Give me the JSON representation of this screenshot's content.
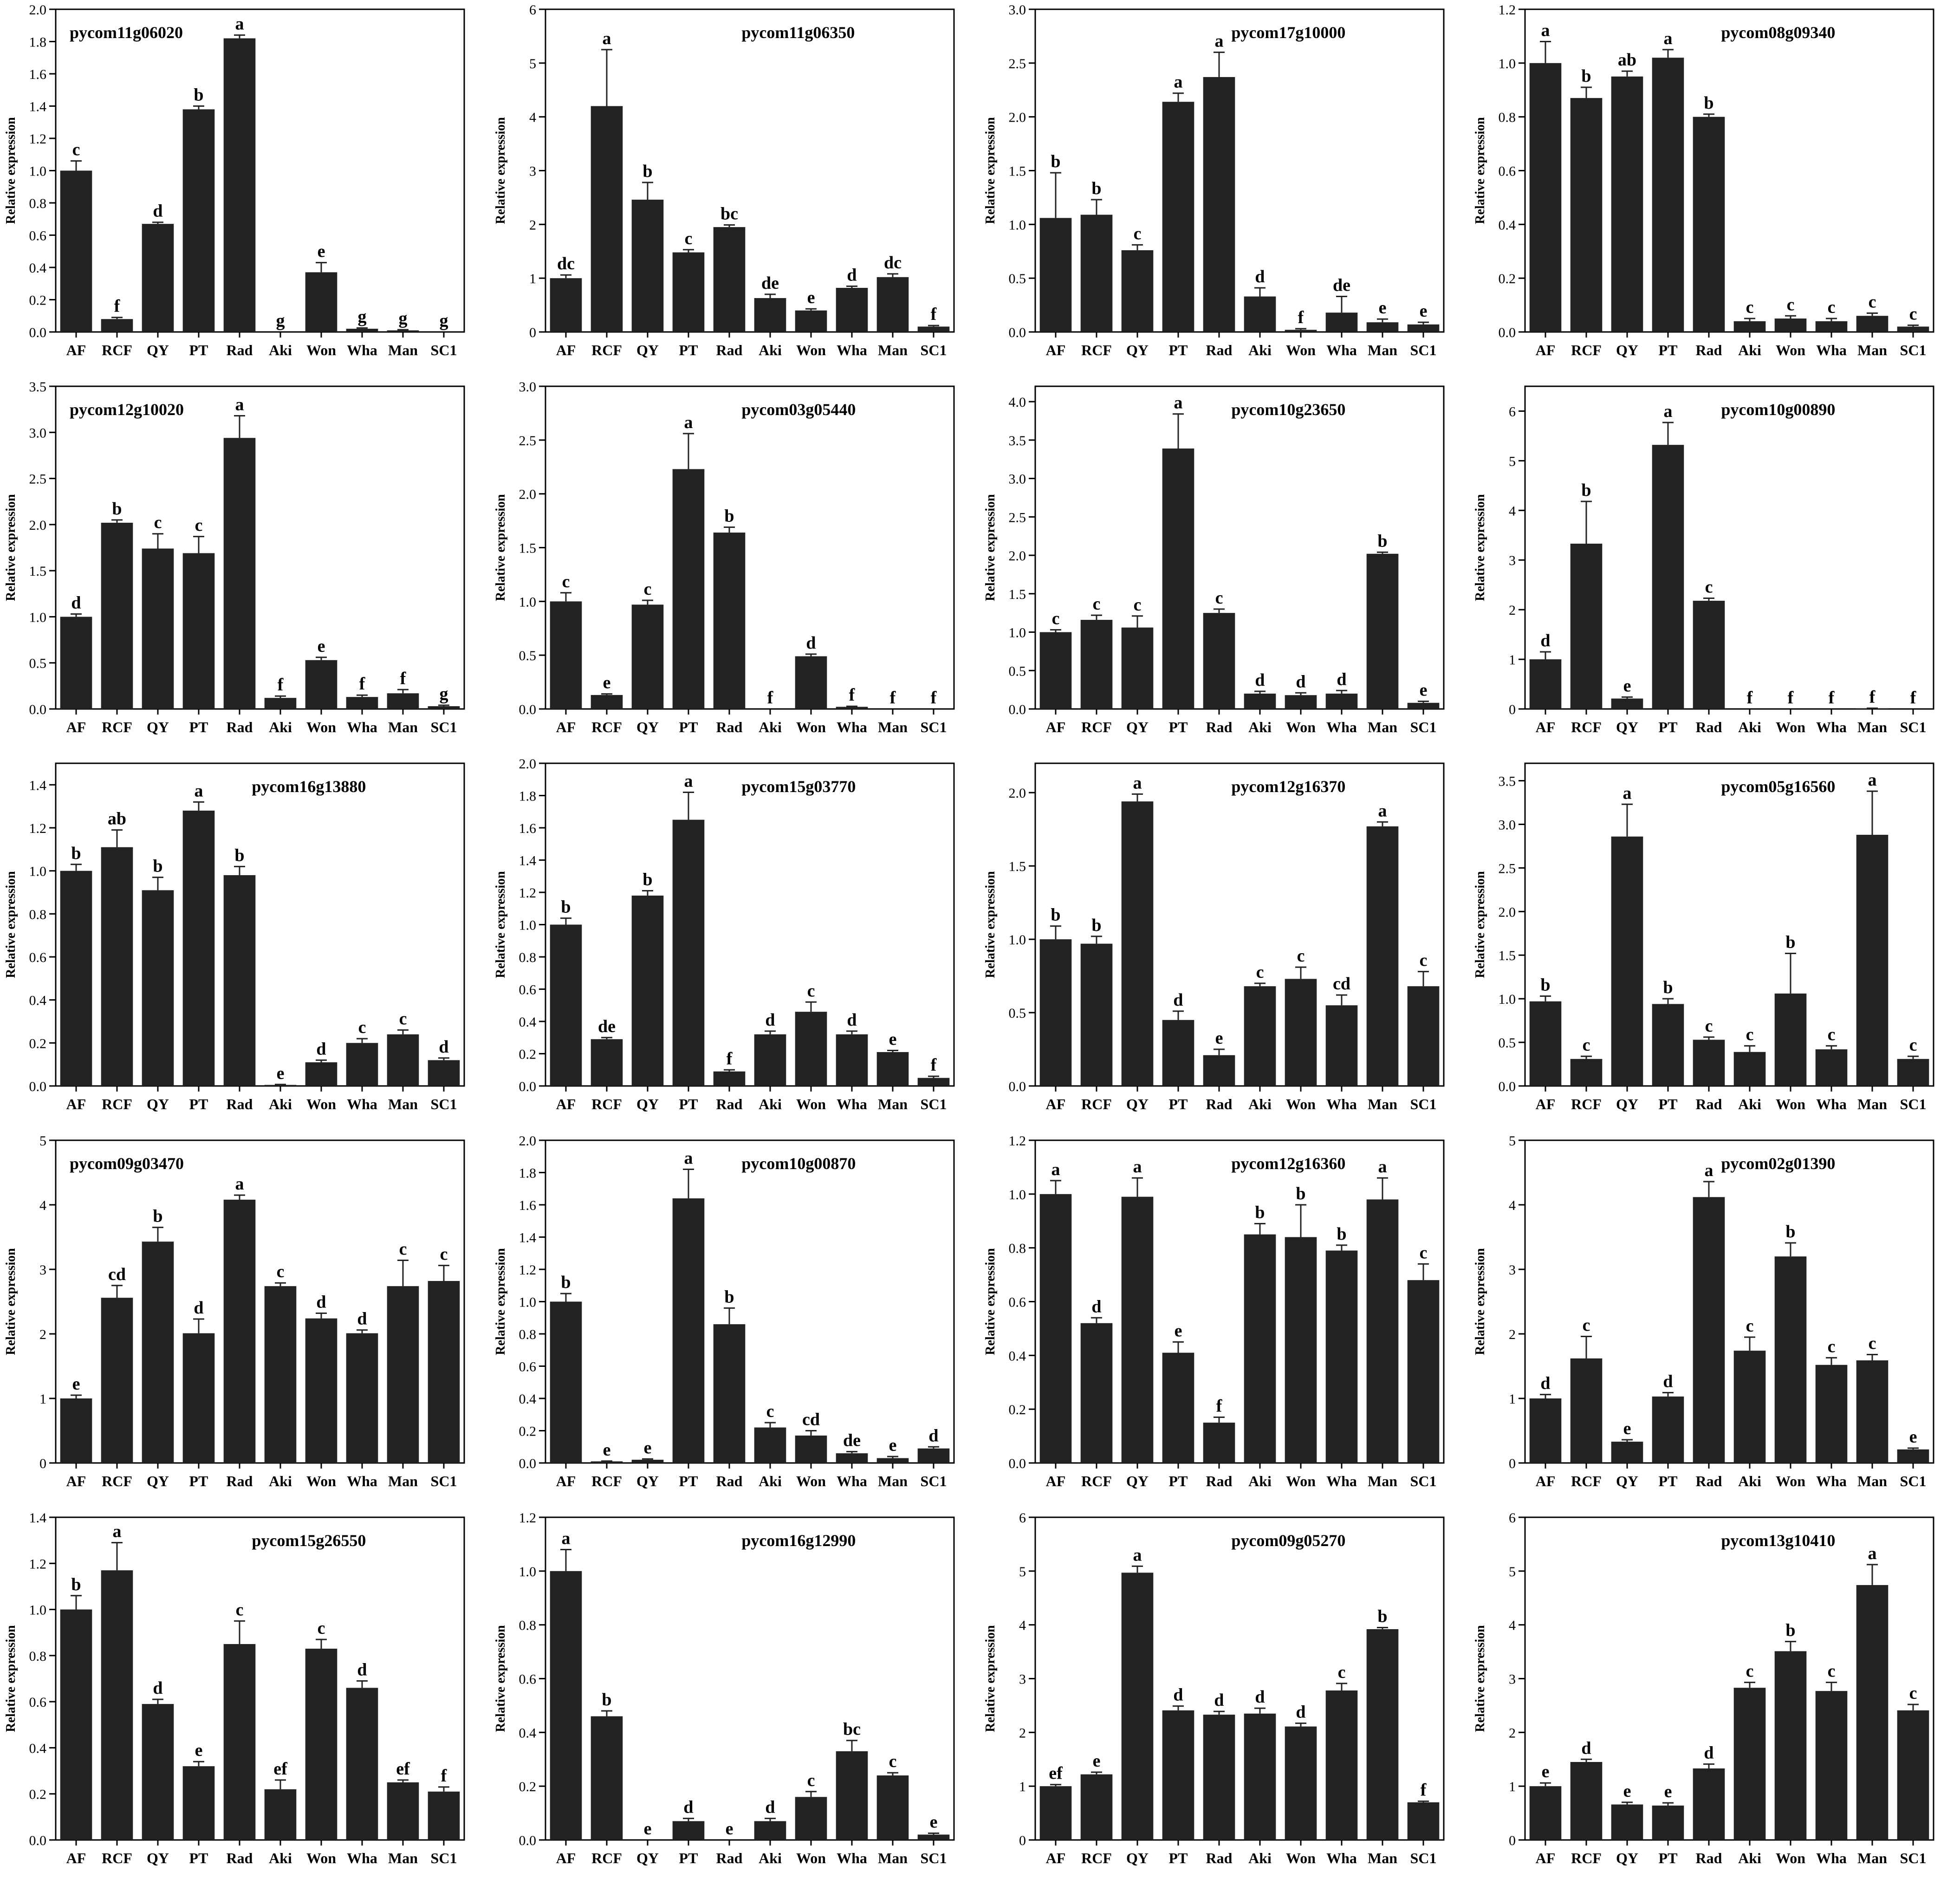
{
  "figure": {
    "bar_color": "#222222",
    "axis_color": "#000000",
    "background": "#ffffff"
  },
  "chart_data": [
    {
      "type": "bar",
      "title": "pycom11g06020",
      "ylabel": "Relative expression",
      "ylim": [
        0,
        2.0
      ],
      "yticks": [
        0,
        0.2,
        0.4,
        0.6,
        0.8,
        1.0,
        1.2,
        1.4,
        1.6,
        1.8,
        2.0
      ],
      "categories": [
        "AF",
        "RCF",
        "QY",
        "PT",
        "Rad",
        "Aki",
        "Won",
        "Wha",
        "Man",
        "SC1"
      ],
      "values": [
        1.0,
        0.08,
        0.67,
        1.38,
        1.82,
        0.0,
        0.37,
        0.02,
        0.01,
        0.0
      ],
      "errors": [
        0.06,
        0.01,
        0.01,
        0.02,
        0.02,
        0.0,
        0.06,
        0.005,
        0.004,
        0.0
      ],
      "letters": [
        "c",
        "f",
        "d",
        "b",
        "a",
        "g",
        "e",
        "g",
        "g",
        "g"
      ]
    },
    {
      "type": "bar",
      "title": "pycom11g06350",
      "ylabel": "Relative expression",
      "ylim": [
        0,
        6
      ],
      "yticks": [
        0,
        1,
        2,
        3,
        4,
        5,
        6
      ],
      "categories": [
        "AF",
        "RCF",
        "QY",
        "PT",
        "Rad",
        "Aki",
        "Won",
        "Wha",
        "Man",
        "SC1"
      ],
      "values": [
        1.0,
        4.2,
        2.46,
        1.48,
        1.95,
        0.63,
        0.4,
        0.82,
        1.02,
        0.1
      ],
      "errors": [
        0.06,
        1.05,
        0.32,
        0.05,
        0.04,
        0.07,
        0.03,
        0.03,
        0.06,
        0.02
      ],
      "letters": [
        "dc",
        "a",
        "b",
        "c",
        "bc",
        "de",
        "e",
        "d",
        "dc",
        "f"
      ]
    },
    {
      "type": "bar",
      "title": "pycom17g10000",
      "ylabel": "Relative expression",
      "ylim": [
        0,
        3.0
      ],
      "yticks": [
        0,
        0.5,
        1.0,
        1.5,
        2.0,
        2.5,
        3.0
      ],
      "categories": [
        "AF",
        "RCF",
        "QY",
        "PT",
        "Rad",
        "Aki",
        "Won",
        "Wha",
        "Man",
        "SC1"
      ],
      "values": [
        1.06,
        1.09,
        0.76,
        2.14,
        2.37,
        0.33,
        0.02,
        0.18,
        0.09,
        0.07
      ],
      "errors": [
        0.42,
        0.14,
        0.05,
        0.08,
        0.23,
        0.08,
        0.01,
        0.15,
        0.03,
        0.02
      ],
      "letters": [
        "b",
        "b",
        "c",
        "a",
        "a",
        "d",
        "f",
        "de",
        "e",
        "e"
      ]
    },
    {
      "type": "bar",
      "title": "pycom08g09340",
      "ylabel": "Relative expression",
      "ylim": [
        0,
        1.2
      ],
      "yticks": [
        0,
        0.2,
        0.4,
        0.6,
        0.8,
        1.0,
        1.2
      ],
      "categories": [
        "AF",
        "RCF",
        "QY",
        "PT",
        "Rad",
        "Aki",
        "Won",
        "Wha",
        "Man",
        "SC1"
      ],
      "values": [
        1.0,
        0.87,
        0.95,
        1.02,
        0.8,
        0.04,
        0.05,
        0.04,
        0.06,
        0.02
      ],
      "errors": [
        0.08,
        0.04,
        0.02,
        0.03,
        0.01,
        0.01,
        0.01,
        0.01,
        0.01,
        0.005
      ],
      "letters": [
        "a",
        "b",
        "ab",
        "a",
        "b",
        "c",
        "c",
        "c",
        "c",
        "c"
      ]
    },
    {
      "type": "bar",
      "title": "pycom12g10020",
      "ylabel": "Relative expression",
      "ylim": [
        0,
        3.5
      ],
      "yticks": [
        0,
        0.5,
        1.0,
        1.5,
        2.0,
        2.5,
        3.0,
        3.5
      ],
      "categories": [
        "AF",
        "RCF",
        "QY",
        "PT",
        "Rad",
        "Aki",
        "Won",
        "Wha",
        "Man",
        "SC1"
      ],
      "values": [
        1.0,
        2.02,
        1.74,
        1.69,
        2.94,
        0.12,
        0.53,
        0.13,
        0.17,
        0.03
      ],
      "errors": [
        0.03,
        0.03,
        0.16,
        0.18,
        0.24,
        0.02,
        0.03,
        0.02,
        0.04,
        0.01
      ],
      "letters": [
        "d",
        "b",
        "c",
        "c",
        "a",
        "f",
        "e",
        "f",
        "f",
        "g"
      ]
    },
    {
      "type": "bar",
      "title": "pycom03g05440",
      "ylabel": "Relative expression",
      "ylim": [
        0,
        3.0
      ],
      "yticks": [
        0,
        0.5,
        1.0,
        1.5,
        2.0,
        2.5,
        3.0
      ],
      "categories": [
        "AF",
        "RCF",
        "QY",
        "PT",
        "Rad",
        "Aki",
        "Won",
        "Wha",
        "Man",
        "SC1"
      ],
      "values": [
        1.0,
        0.13,
        0.97,
        2.23,
        1.64,
        0.0,
        0.49,
        0.02,
        0.0,
        0.0
      ],
      "errors": [
        0.08,
        0.01,
        0.04,
        0.33,
        0.05,
        0.0,
        0.02,
        0.005,
        0.0,
        0.0
      ],
      "letters": [
        "c",
        "e",
        "c",
        "a",
        "b",
        "f",
        "d",
        "f",
        "f",
        "f"
      ]
    },
    {
      "type": "bar",
      "title": "pycom10g23650",
      "ylabel": "Relative expression",
      "ylim": [
        0,
        4.2
      ],
      "yticks": [
        0,
        0.5,
        1.0,
        1.5,
        2.0,
        2.5,
        3.0,
        3.5,
        4.0
      ],
      "categories": [
        "AF",
        "RCF",
        "QY",
        "PT",
        "Rad",
        "Aki",
        "Won",
        "Wha",
        "Man",
        "SC1"
      ],
      "values": [
        1.0,
        1.16,
        1.06,
        3.39,
        1.25,
        0.2,
        0.18,
        0.2,
        2.02,
        0.08
      ],
      "errors": [
        0.03,
        0.06,
        0.15,
        0.45,
        0.05,
        0.03,
        0.03,
        0.04,
        0.02,
        0.02
      ],
      "letters": [
        "c",
        "c",
        "c",
        "a",
        "c",
        "d",
        "d",
        "d",
        "b",
        "e"
      ]
    },
    {
      "type": "bar",
      "title": "pycom10g00890",
      "ylabel": "Relative expression",
      "ylim": [
        0,
        6.5
      ],
      "yticks": [
        0,
        1,
        2,
        3,
        4,
        5,
        6
      ],
      "categories": [
        "AF",
        "RCF",
        "QY",
        "PT",
        "Rad",
        "Aki",
        "Won",
        "Wha",
        "Man",
        "SC1"
      ],
      "values": [
        1.0,
        3.33,
        0.21,
        5.32,
        2.18,
        0.0,
        0.0,
        0.0,
        0.01,
        0.0
      ],
      "errors": [
        0.15,
        0.85,
        0.03,
        0.45,
        0.05,
        0.0,
        0.0,
        0.0,
        0.005,
        0.0
      ],
      "letters": [
        "d",
        "b",
        "e",
        "a",
        "c",
        "f",
        "f",
        "f",
        "f",
        "f"
      ]
    },
    {
      "type": "bar",
      "title": "pycom16g13880",
      "ylabel": "Relative expression",
      "ylim": [
        0,
        1.5
      ],
      "yticks": [
        0,
        0.2,
        0.4,
        0.6,
        0.8,
        1.0,
        1.2,
        1.4
      ],
      "categories": [
        "AF",
        "RCF",
        "QY",
        "PT",
        "Rad",
        "Aki",
        "Won",
        "Wha",
        "Man",
        "SC1"
      ],
      "values": [
        1.0,
        1.11,
        0.91,
        1.28,
        0.98,
        0.005,
        0.11,
        0.2,
        0.24,
        0.12
      ],
      "errors": [
        0.03,
        0.08,
        0.06,
        0.04,
        0.04,
        0.002,
        0.01,
        0.02,
        0.02,
        0.01
      ],
      "letters": [
        "b",
        "ab",
        "b",
        "a",
        "b",
        "e",
        "d",
        "c",
        "c",
        "d"
      ]
    },
    {
      "type": "bar",
      "title": "pycom15g03770",
      "ylabel": "Relative expression",
      "ylim": [
        0,
        2.0
      ],
      "yticks": [
        0,
        0.2,
        0.4,
        0.6,
        0.8,
        1.0,
        1.2,
        1.4,
        1.6,
        1.8,
        2.0
      ],
      "categories": [
        "AF",
        "RCF",
        "QY",
        "PT",
        "Rad",
        "Aki",
        "Won",
        "Wha",
        "Man",
        "SC1"
      ],
      "values": [
        1.0,
        0.29,
        1.18,
        1.65,
        0.09,
        0.32,
        0.46,
        0.32,
        0.21,
        0.05
      ],
      "errors": [
        0.04,
        0.01,
        0.03,
        0.17,
        0.01,
        0.02,
        0.06,
        0.02,
        0.01,
        0.01
      ],
      "letters": [
        "b",
        "de",
        "b",
        "a",
        "f",
        "d",
        "c",
        "d",
        "e",
        "f"
      ]
    },
    {
      "type": "bar",
      "title": "pycom12g16370",
      "ylabel": "Relative expression",
      "ylim": [
        0,
        2.2
      ],
      "yticks": [
        0,
        0.5,
        1.0,
        1.5,
        2.0
      ],
      "categories": [
        "AF",
        "RCF",
        "QY",
        "PT",
        "Rad",
        "Aki",
        "Won",
        "Wha",
        "Man",
        "SC1"
      ],
      "values": [
        1.0,
        0.97,
        1.94,
        0.45,
        0.21,
        0.68,
        0.73,
        0.55,
        1.77,
        0.68
      ],
      "errors": [
        0.09,
        0.05,
        0.05,
        0.06,
        0.04,
        0.02,
        0.08,
        0.07,
        0.03,
        0.1
      ],
      "letters": [
        "b",
        "b",
        "a",
        "d",
        "e",
        "c",
        "c",
        "cd",
        "a",
        "c"
      ]
    },
    {
      "type": "bar",
      "title": "pycom05g16560",
      "ylabel": "Relative expression",
      "ylim": [
        0,
        3.7
      ],
      "yticks": [
        0,
        0.5,
        1.0,
        1.5,
        2.0,
        2.5,
        3.0,
        3.5
      ],
      "categories": [
        "AF",
        "RCF",
        "QY",
        "PT",
        "Rad",
        "Aki",
        "Won",
        "Wha",
        "Man",
        "SC1"
      ],
      "values": [
        0.97,
        0.31,
        2.86,
        0.94,
        0.53,
        0.39,
        1.06,
        0.42,
        2.88,
        0.31
      ],
      "errors": [
        0.06,
        0.03,
        0.37,
        0.06,
        0.03,
        0.07,
        0.46,
        0.04,
        0.5,
        0.03
      ],
      "letters": [
        "b",
        "c",
        "a",
        "b",
        "c",
        "c",
        "b",
        "c",
        "a",
        "c"
      ]
    },
    {
      "type": "bar",
      "title": "pycom09g03470",
      "ylabel": "Relative expression",
      "ylim": [
        0,
        5
      ],
      "yticks": [
        0,
        1,
        2,
        3,
        4,
        5
      ],
      "categories": [
        "AF",
        "RCF",
        "QY",
        "PT",
        "Rad",
        "Aki",
        "Won",
        "Wha",
        "Man",
        "SC1"
      ],
      "values": [
        1.0,
        2.56,
        3.43,
        2.01,
        4.08,
        2.74,
        2.24,
        2.01,
        2.74,
        2.82
      ],
      "errors": [
        0.05,
        0.19,
        0.22,
        0.22,
        0.07,
        0.05,
        0.08,
        0.05,
        0.4,
        0.24
      ],
      "letters": [
        "e",
        "cd",
        "b",
        "d",
        "a",
        "c",
        "d",
        "d",
        "c",
        "c"
      ]
    },
    {
      "type": "bar",
      "title": "pycom10g00870",
      "ylabel": "Relative expression",
      "ylim": [
        0,
        2.0
      ],
      "yticks": [
        0,
        0.2,
        0.4,
        0.6,
        0.8,
        1.0,
        1.2,
        1.4,
        1.6,
        1.8,
        2.0
      ],
      "categories": [
        "AF",
        "RCF",
        "QY",
        "PT",
        "Rad",
        "Aki",
        "Won",
        "Wha",
        "Man",
        "SC1"
      ],
      "values": [
        1.0,
        0.01,
        0.02,
        1.64,
        0.86,
        0.22,
        0.17,
        0.06,
        0.03,
        0.09
      ],
      "errors": [
        0.05,
        0.002,
        0.005,
        0.18,
        0.1,
        0.03,
        0.03,
        0.01,
        0.01,
        0.01
      ],
      "letters": [
        "b",
        "e",
        "e",
        "a",
        "b",
        "c",
        "cd",
        "de",
        "e",
        "d"
      ]
    },
    {
      "type": "bar",
      "title": "pycom12g16360",
      "ylabel": "Relative expression",
      "ylim": [
        0,
        1.2
      ],
      "yticks": [
        0,
        0.2,
        0.4,
        0.6,
        0.8,
        1.0,
        1.2
      ],
      "categories": [
        "AF",
        "RCF",
        "QY",
        "PT",
        "Rad",
        "Aki",
        "Won",
        "Wha",
        "Man",
        "SC1"
      ],
      "values": [
        1.0,
        0.52,
        0.99,
        0.41,
        0.15,
        0.85,
        0.84,
        0.79,
        0.98,
        0.68
      ],
      "errors": [
        0.05,
        0.02,
        0.07,
        0.04,
        0.02,
        0.04,
        0.12,
        0.02,
        0.08,
        0.06
      ],
      "letters": [
        "a",
        "d",
        "a",
        "e",
        "f",
        "b",
        "b",
        "b",
        "a",
        "c"
      ]
    },
    {
      "type": "bar",
      "title": "pycom02g01390",
      "ylabel": "Relative expression",
      "ylim": [
        0,
        5
      ],
      "yticks": [
        0,
        1,
        2,
        3,
        4,
        5
      ],
      "categories": [
        "AF",
        "RCF",
        "QY",
        "PT",
        "Rad",
        "Aki",
        "Won",
        "Wha",
        "Man",
        "SC1"
      ],
      "values": [
        1.0,
        1.62,
        0.33,
        1.03,
        4.12,
        1.74,
        3.2,
        1.52,
        1.59,
        0.21
      ],
      "errors": [
        0.06,
        0.34,
        0.03,
        0.06,
        0.24,
        0.21,
        0.21,
        0.11,
        0.09,
        0.02
      ],
      "letters": [
        "d",
        "c",
        "e",
        "d",
        "a",
        "c",
        "b",
        "c",
        "c",
        "e"
      ]
    },
    {
      "type": "bar",
      "title": "pycom15g26550",
      "ylabel": "Relative expression",
      "ylim": [
        0,
        1.4
      ],
      "yticks": [
        0,
        0.2,
        0.4,
        0.6,
        0.8,
        1.0,
        1.2,
        1.4
      ],
      "categories": [
        "AF",
        "RCF",
        "QY",
        "PT",
        "Rad",
        "Aki",
        "Won",
        "Wha",
        "Man",
        "SC1"
      ],
      "values": [
        1.0,
        1.17,
        0.59,
        0.32,
        0.85,
        0.22,
        0.83,
        0.66,
        0.25,
        0.21
      ],
      "errors": [
        0.06,
        0.12,
        0.02,
        0.02,
        0.1,
        0.04,
        0.04,
        0.03,
        0.01,
        0.02
      ],
      "letters": [
        "b",
        "a",
        "d",
        "e",
        "c",
        "ef",
        "c",
        "d",
        "ef",
        "f"
      ]
    },
    {
      "type": "bar",
      "title": "pycom16g12990",
      "ylabel": "Relative expression",
      "ylim": [
        0,
        1.2
      ],
      "yticks": [
        0,
        0.2,
        0.4,
        0.6,
        0.8,
        1.0,
        1.2
      ],
      "categories": [
        "AF",
        "RCF",
        "QY",
        "PT",
        "Rad",
        "Aki",
        "Won",
        "Wha",
        "Man",
        "SC1"
      ],
      "values": [
        1.0,
        0.46,
        0.0,
        0.07,
        0.0,
        0.07,
        0.16,
        0.33,
        0.24,
        0.02
      ],
      "errors": [
        0.08,
        0.02,
        0.0,
        0.01,
        0.0,
        0.01,
        0.02,
        0.04,
        0.01,
        0.005
      ],
      "letters": [
        "a",
        "b",
        "e",
        "d",
        "e",
        "d",
        "c",
        "bc",
        "c",
        "e"
      ]
    },
    {
      "type": "bar",
      "title": "pycom09g05270",
      "ylabel": "Relative expression",
      "ylim": [
        0,
        6
      ],
      "yticks": [
        0,
        1,
        2,
        3,
        4,
        5,
        6
      ],
      "categories": [
        "AF",
        "RCF",
        "QY",
        "PT",
        "Rad",
        "Aki",
        "Won",
        "Wha",
        "Man",
        "SC1"
      ],
      "values": [
        1.0,
        1.22,
        4.97,
        2.41,
        2.33,
        2.35,
        2.11,
        2.78,
        3.92,
        0.7
      ],
      "errors": [
        0.03,
        0.04,
        0.12,
        0.08,
        0.06,
        0.1,
        0.06,
        0.13,
        0.03,
        0.02
      ],
      "letters": [
        "ef",
        "e",
        "a",
        "d",
        "d",
        "d",
        "d",
        "c",
        "b",
        "f"
      ]
    },
    {
      "type": "bar",
      "title": "pycom13g10410",
      "ylabel": "Relative expression",
      "ylim": [
        0,
        6
      ],
      "yticks": [
        0,
        1,
        2,
        3,
        4,
        5,
        6
      ],
      "categories": [
        "AF",
        "RCF",
        "QY",
        "PT",
        "Rad",
        "Aki",
        "Won",
        "Wha",
        "Man",
        "SC1"
      ],
      "values": [
        1.0,
        1.45,
        0.66,
        0.64,
        1.33,
        2.83,
        3.51,
        2.77,
        4.74,
        2.41
      ],
      "errors": [
        0.06,
        0.05,
        0.04,
        0.05,
        0.08,
        0.1,
        0.18,
        0.16,
        0.38,
        0.11
      ],
      "letters": [
        "e",
        "d",
        "e",
        "e",
        "d",
        "c",
        "b",
        "c",
        "a",
        "c"
      ]
    }
  ]
}
